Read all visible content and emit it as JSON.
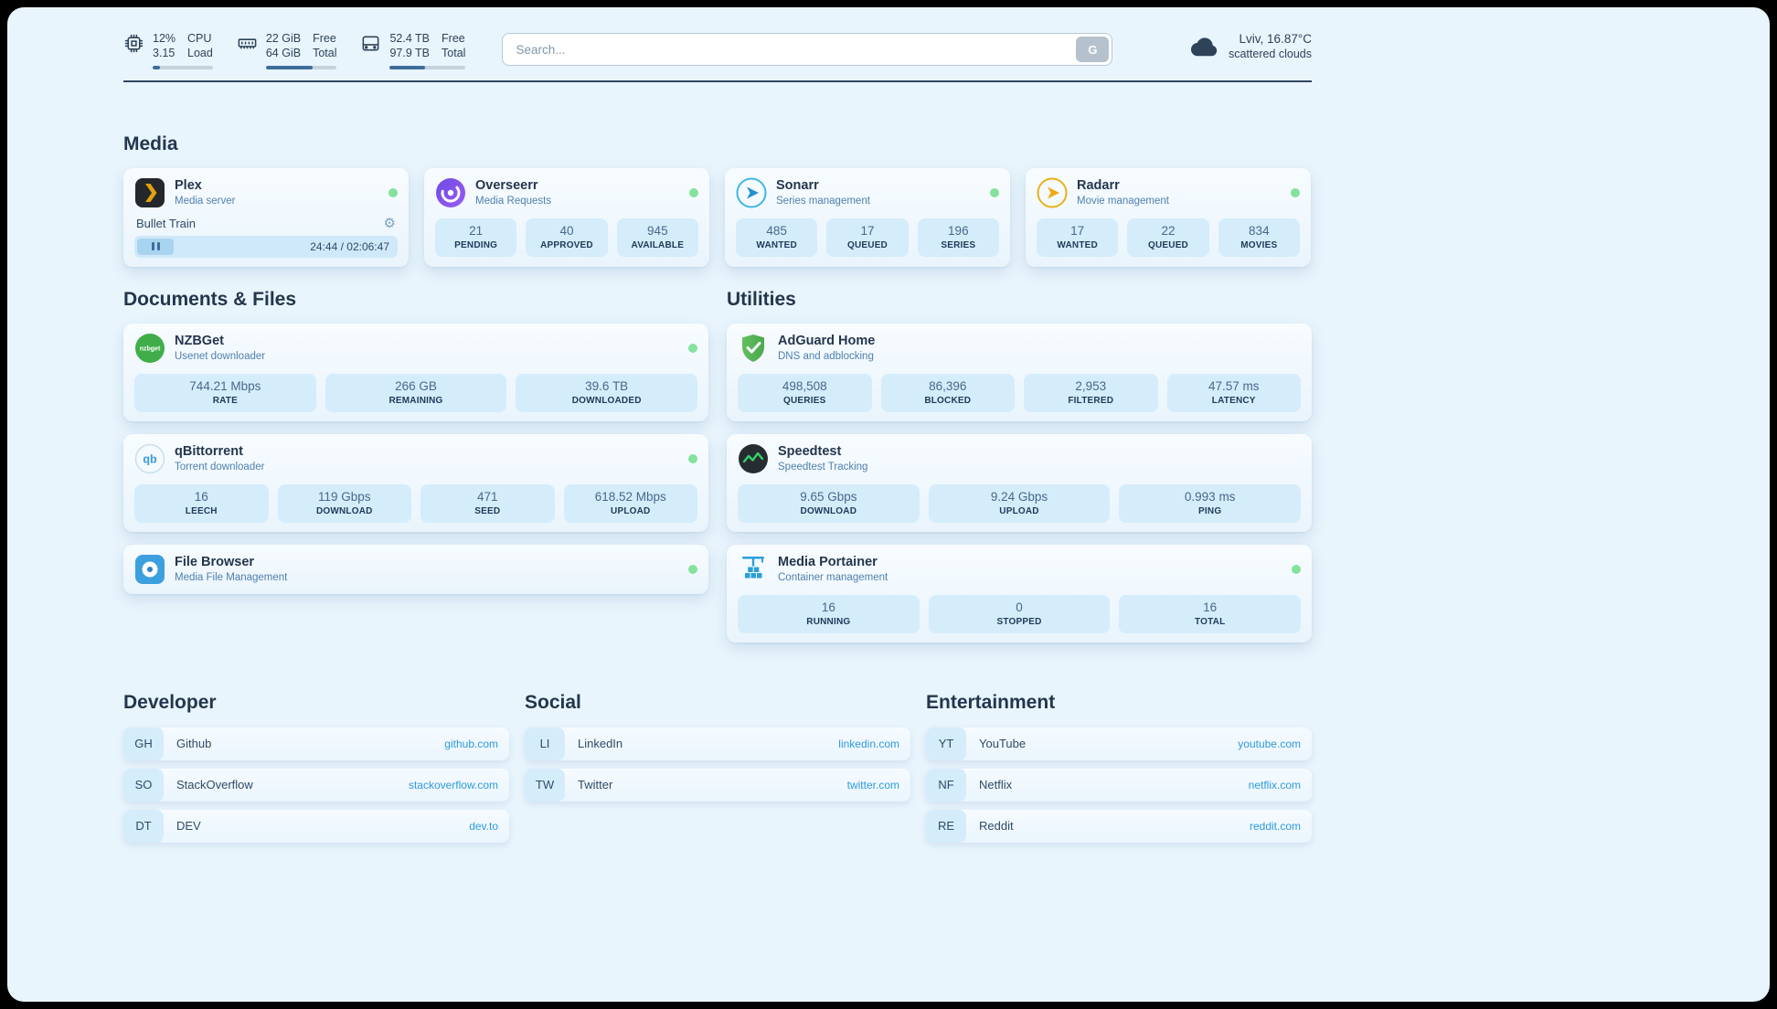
{
  "topbar": {
    "resources": [
      {
        "id": "cpu",
        "value_top": "12%",
        "value_bottom": "3.15",
        "label_top": "CPU",
        "label_bottom": "Load",
        "progress_percent": 12
      },
      {
        "id": "memory",
        "value_top": "22 GiB",
        "value_bottom": "64 GiB",
        "label_top": "Free",
        "label_bottom": "Total",
        "progress_percent": 66
      },
      {
        "id": "disk",
        "value_top": "52.4 TB",
        "value_bottom": "97.9 TB",
        "label_top": "Free",
        "label_bottom": "Total",
        "progress_percent": 47
      }
    ],
    "search": {
      "placeholder": "Search...",
      "button_label": "G"
    },
    "weather": {
      "location": "Lviv, 16.87°C",
      "condition": "scattered clouds"
    }
  },
  "sections": {
    "media": "Media",
    "documents": "Documents & Files",
    "utilities": "Utilities",
    "developer": "Developer",
    "social": "Social",
    "entertainment": "Entertainment"
  },
  "services": {
    "plex": {
      "title": "Plex",
      "subtitle": "Media server",
      "status": "online",
      "now_playing": "Bullet Train",
      "time": "24:44 / 02:06:47"
    },
    "overseerr": {
      "title": "Overseerr",
      "subtitle": "Media Requests",
      "status": "online",
      "stats": [
        {
          "value": "21",
          "label": "PENDING"
        },
        {
          "value": "40",
          "label": "APPROVED"
        },
        {
          "value": "945",
          "label": "AVAILABLE"
        }
      ]
    },
    "sonarr": {
      "title": "Sonarr",
      "subtitle": "Series management",
      "status": "online",
      "stats": [
        {
          "value": "485",
          "label": "WANTED"
        },
        {
          "value": "17",
          "label": "QUEUED"
        },
        {
          "value": "196",
          "label": "SERIES"
        }
      ]
    },
    "radarr": {
      "title": "Radarr",
      "subtitle": "Movie management",
      "status": "online",
      "stats": [
        {
          "value": "17",
          "label": "WANTED"
        },
        {
          "value": "22",
          "label": "QUEUED"
        },
        {
          "value": "834",
          "label": "MOVIES"
        }
      ]
    },
    "nzbget": {
      "title": "NZBGet",
      "subtitle": "Usenet downloader",
      "status": "online",
      "stats": [
        {
          "value": "744.21 Mbps",
          "label": "RATE"
        },
        {
          "value": "266 GB",
          "label": "REMAINING"
        },
        {
          "value": "39.6 TB",
          "label": "DOWNLOADED"
        }
      ]
    },
    "qbittorrent": {
      "title": "qBittorrent",
      "subtitle": "Torrent downloader",
      "status": "online",
      "stats": [
        {
          "value": "16",
          "label": "LEECH"
        },
        {
          "value": "119 Gbps",
          "label": "DOWNLOAD"
        },
        {
          "value": "471",
          "label": "SEED"
        },
        {
          "value": "618.52 Mbps",
          "label": "UPLOAD"
        }
      ]
    },
    "filebrowser": {
      "title": "File Browser",
      "subtitle": "Media File Management",
      "status": "online"
    },
    "adguard": {
      "title": "AdGuard Home",
      "subtitle": "DNS and adblocking",
      "stats": [
        {
          "value": "498,508",
          "label": "QUERIES"
        },
        {
          "value": "86,396",
          "label": "BLOCKED"
        },
        {
          "value": "2,953",
          "label": "FILTERED"
        },
        {
          "value": "47.57 ms",
          "label": "LATENCY"
        }
      ]
    },
    "speedtest": {
      "title": "Speedtest",
      "subtitle": "Speedtest Tracking",
      "stats": [
        {
          "value": "9.65 Gbps",
          "label": "DOWNLOAD"
        },
        {
          "value": "9.24 Gbps",
          "label": "UPLOAD"
        },
        {
          "value": "0.993 ms",
          "label": "PING"
        }
      ]
    },
    "portainer": {
      "title": "Media Portainer",
      "subtitle": "Container management",
      "status": "online",
      "stats": [
        {
          "value": "16",
          "label": "RUNNING"
        },
        {
          "value": "0",
          "label": "STOPPED"
        },
        {
          "value": "16",
          "label": "TOTAL"
        }
      ]
    }
  },
  "bookmarks": {
    "developer": {
      "items": [
        {
          "abbr": "GH",
          "name": "Github",
          "url": "github.com"
        },
        {
          "abbr": "SO",
          "name": "StackOverflow",
          "url": "stackoverflow.com"
        },
        {
          "abbr": "DT",
          "name": "DEV",
          "url": "dev.to"
        }
      ]
    },
    "social": {
      "items": [
        {
          "abbr": "LI",
          "name": "LinkedIn",
          "url": "linkedin.com"
        },
        {
          "abbr": "TW",
          "name": "Twitter",
          "url": "twitter.com"
        }
      ]
    },
    "entertainment": {
      "items": [
        {
          "abbr": "YT",
          "name": "YouTube",
          "url": "youtube.com"
        },
        {
          "abbr": "NF",
          "name": "Netflix",
          "url": "netflix.com"
        },
        {
          "abbr": "RE",
          "name": "Reddit",
          "url": "reddit.com"
        }
      ]
    }
  },
  "icons": {
    "nzbget_text": "nzbget",
    "qbittorrent_text": "qb",
    "gear": "⚙"
  },
  "colors": {
    "page_background": "#e9f5fd",
    "stat_box": "#d5ecfb",
    "status_online": "#85e29e",
    "link": "#2f9bdb",
    "plex_accent": "#e5a00d",
    "text_dark": "#24364d"
  }
}
